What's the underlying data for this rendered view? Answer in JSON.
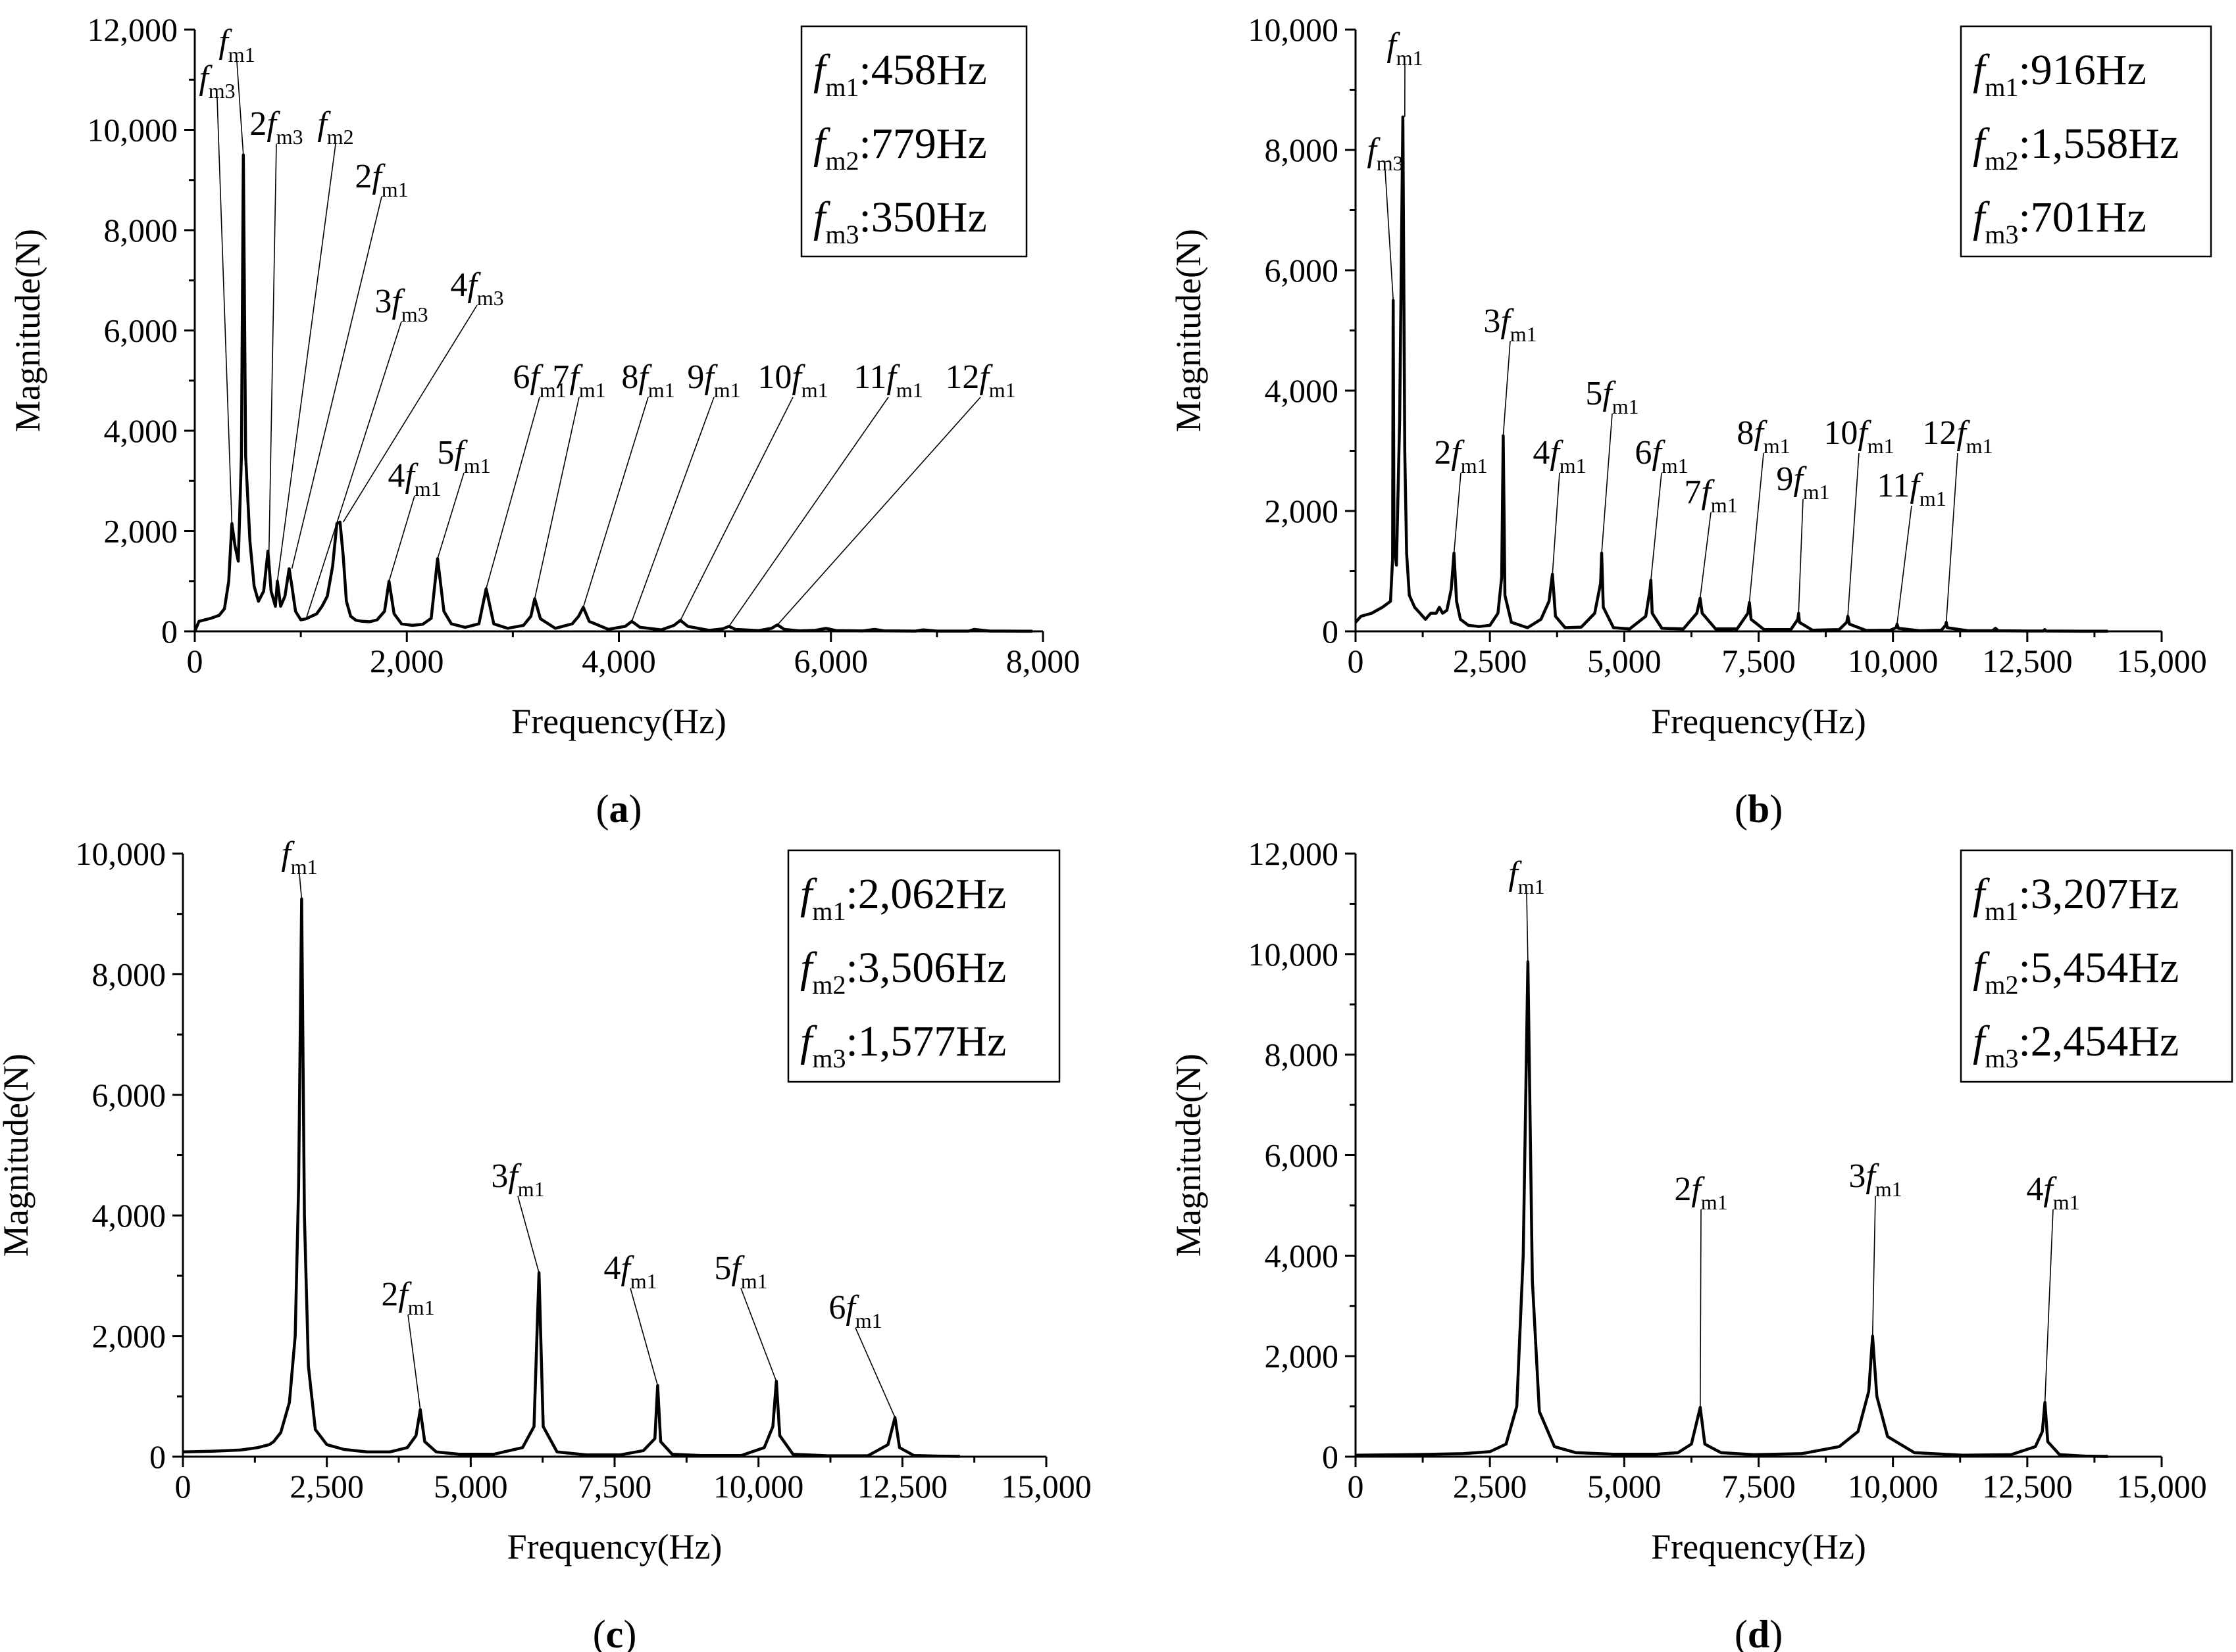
{
  "chart_data": [
    {
      "id": "a",
      "type": "line",
      "caption": "a",
      "xlabel": "Frequency(Hz)",
      "ylabel": "Magnitude(N)",
      "xlim": [
        0,
        8000
      ],
      "ylim": [
        0,
        12000
      ],
      "xticks": [
        0,
        2000,
        4000,
        6000,
        8000
      ],
      "xtick_labels": [
        "0",
        "2,000",
        "4,000",
        "6,000",
        "8,000"
      ],
      "yticks": [
        0,
        2000,
        4000,
        6000,
        8000,
        10000,
        12000
      ],
      "ytick_labels": [
        "0",
        "2,000",
        "4,000",
        "6,000",
        "8,000",
        "10,000",
        "12,000"
      ],
      "legend": [
        {
          "name": "f",
          "sub": "m1",
          "value": ":458Hz"
        },
        {
          "name": "f",
          "sub": "m2",
          "value": ":779Hz"
        },
        {
          "name": "f",
          "sub": "m3",
          "value": ":350Hz"
        }
      ],
      "series": [
        {
          "name": "Magnitude",
          "x": [
            0,
            40,
            150,
            230,
            280,
            320,
            350,
            380,
            410,
            440,
            458,
            480,
            520,
            560,
            600,
            650,
            690,
            720,
            760,
            779,
            810,
            850,
            890,
            916,
            950,
            1000,
            1050,
            1100,
            1150,
            1200,
            1250,
            1300,
            1340,
            1370,
            1400,
            1430,
            1470,
            1520,
            1580,
            1650,
            1720,
            1790,
            1832,
            1880,
            1950,
            2050,
            2150,
            2230,
            2290,
            2350,
            2420,
            2550,
            2680,
            2748,
            2820,
            2950,
            3100,
            3170,
            3206,
            3260,
            3400,
            3560,
            3620,
            3664,
            3720,
            3900,
            4060,
            4122,
            4200,
            4400,
            4520,
            4580,
            4650,
            4850,
            4980,
            5038,
            5100,
            5320,
            5440,
            5496,
            5560,
            5700,
            5850,
            5954,
            6050,
            6300,
            6412,
            6500,
            6800,
            6870,
            7000,
            7300,
            7350,
            7500,
            7800,
            7900
          ],
          "y": [
            0,
            200,
            260,
            320,
            450,
            1000,
            2150,
            1700,
            1400,
            3500,
            9500,
            3500,
            1800,
            900,
            600,
            800,
            1600,
            800,
            500,
            1000,
            500,
            700,
            1250,
            900,
            400,
            230,
            250,
            300,
            350,
            500,
            700,
            1300,
            2150,
            2180,
            1500,
            600,
            300,
            220,
            200,
            190,
            230,
            400,
            1000,
            350,
            150,
            120,
            140,
            260,
            1450,
            400,
            150,
            80,
            150,
            850,
            150,
            60,
            120,
            300,
            650,
            250,
            60,
            150,
            300,
            480,
            200,
            40,
            100,
            200,
            80,
            30,
            120,
            220,
            100,
            20,
            50,
            100,
            40,
            15,
            60,
            130,
            40,
            10,
            20,
            60,
            15,
            8,
            40,
            10,
            5,
            30,
            5,
            5,
            40,
            5,
            3,
            3
          ]
        }
      ],
      "annotations": [
        {
          "coef": "",
          "sub": "m3",
          "x": 350,
          "y": 2150
        },
        {
          "coef": "",
          "sub": "m1",
          "x": 458,
          "y": 9500
        },
        {
          "coef": "2",
          "sub": "m3",
          "x": 700,
          "y": 1600
        },
        {
          "coef": "",
          "sub": "m2",
          "x": 779,
          "y": 1000
        },
        {
          "coef": "2",
          "sub": "m1",
          "x": 916,
          "y": 1250
        },
        {
          "coef": "3",
          "sub": "m3",
          "x": 1050,
          "y": 250
        },
        {
          "coef": "4",
          "sub": "m3",
          "x": 1400,
          "y": 2180
        },
        {
          "coef": "4",
          "sub": "m1",
          "x": 1832,
          "y": 1000
        },
        {
          "coef": "5",
          "sub": "m1",
          "x": 2290,
          "y": 1450
        },
        {
          "coef": "6",
          "sub": "m1",
          "x": 2748,
          "y": 850
        },
        {
          "coef": "7",
          "sub": "m1",
          "x": 3206,
          "y": 650
        },
        {
          "coef": "8",
          "sub": "m1",
          "x": 3664,
          "y": 480
        },
        {
          "coef": "9",
          "sub": "m1",
          "x": 4122,
          "y": 200
        },
        {
          "coef": "10",
          "sub": "m1",
          "x": 4580,
          "y": 220
        },
        {
          "coef": "11",
          "sub": "m1",
          "x": 5038,
          "y": 100
        },
        {
          "coef": "12",
          "sub": "m1",
          "x": 5496,
          "y": 130
        }
      ]
    },
    {
      "id": "b",
      "type": "line",
      "caption": "b",
      "xlabel": "Frequency(Hz)",
      "ylabel": "Magnitude(N)",
      "xlim": [
        0,
        15000
      ],
      "ylim": [
        0,
        10000
      ],
      "xticks": [
        0,
        2500,
        5000,
        7500,
        10000,
        12500,
        15000
      ],
      "xtick_labels": [
        "0",
        "2,500",
        "5,000",
        "7,500",
        "10,000",
        "12,500",
        "15,000"
      ],
      "yticks": [
        0,
        2000,
        4000,
        6000,
        8000,
        10000
      ],
      "ytick_labels": [
        "0",
        "2,000",
        "4,000",
        "6,000",
        "8,000",
        "10,000"
      ],
      "legend": [
        {
          "name": "f",
          "sub": "m1",
          "value": ":916Hz"
        },
        {
          "name": "f",
          "sub": "m2",
          "value": ":1,558Hz"
        },
        {
          "name": "f",
          "sub": "m3",
          "value": ":701Hz"
        }
      ],
      "series": [
        {
          "name": "Magnitude",
          "x": [
            0,
            100,
            300,
            500,
            650,
            690,
            701,
            715,
            760,
            820,
            880,
            916,
            950,
            1000,
            1100,
            1200,
            1300,
            1400,
            1500,
            1560,
            1620,
            1700,
            1780,
            1832,
            1880,
            1950,
            2100,
            2300,
            2500,
            2650,
            2720,
            2748,
            2780,
            2900,
            3200,
            3450,
            3600,
            3664,
            3720,
            3900,
            4200,
            4450,
            4560,
            4580,
            4610,
            4800,
            5100,
            5400,
            5480,
            5496,
            5520,
            5700,
            6100,
            6350,
            6400,
            6412,
            6450,
            6700,
            7100,
            7300,
            7328,
            7360,
            7600,
            8100,
            8230,
            8244,
            8260,
            8500,
            9000,
            9140,
            9160,
            9190,
            9500,
            9950,
            10060,
            10076,
            10100,
            10500,
            10900,
            10980,
            10992,
            11010,
            11400,
            11850,
            11908,
            11960,
            12500,
            12800,
            12824,
            12850,
            13500,
            14000
          ],
          "y": [
            150,
            250,
            300,
            400,
            500,
            1200,
            5500,
            1500,
            1100,
            3500,
            8550,
            3000,
            1300,
            600,
            400,
            300,
            200,
            300,
            300,
            400,
            300,
            350,
            700,
            1300,
            500,
            200,
            100,
            80,
            100,
            300,
            900,
            3250,
            600,
            150,
            60,
            200,
            500,
            950,
            250,
            60,
            70,
            300,
            800,
            1300,
            400,
            60,
            40,
            250,
            700,
            850,
            300,
            50,
            40,
            300,
            500,
            550,
            300,
            40,
            40,
            300,
            480,
            200,
            30,
            30,
            200,
            300,
            150,
            20,
            30,
            150,
            250,
            120,
            15,
            20,
            60,
            120,
            50,
            10,
            20,
            100,
            150,
            60,
            10,
            10,
            50,
            10,
            5,
            5,
            30,
            5,
            3,
            3
          ]
        }
      ],
      "annotations": [
        {
          "coef": "",
          "sub": "m3",
          "x": 701,
          "y": 5500
        },
        {
          "coef": "",
          "sub": "m1",
          "x": 916,
          "y": 8550
        },
        {
          "coef": "2",
          "sub": "m1",
          "x": 1832,
          "y": 1300
        },
        {
          "coef": "3",
          "sub": "m1",
          "x": 2748,
          "y": 3250
        },
        {
          "coef": "4",
          "sub": "m1",
          "x": 3664,
          "y": 950
        },
        {
          "coef": "5",
          "sub": "m1",
          "x": 4580,
          "y": 1300
        },
        {
          "coef": "6",
          "sub": "m1",
          "x": 5496,
          "y": 850
        },
        {
          "coef": "7",
          "sub": "m1",
          "x": 6412,
          "y": 550
        },
        {
          "coef": "8",
          "sub": "m1",
          "x": 7328,
          "y": 480
        },
        {
          "coef": "9",
          "sub": "m1",
          "x": 8244,
          "y": 300
        },
        {
          "coef": "10",
          "sub": "m1",
          "x": 9160,
          "y": 250
        },
        {
          "coef": "11",
          "sub": "m1",
          "x": 10076,
          "y": 120
        },
        {
          "coef": "12",
          "sub": "m1",
          "x": 10992,
          "y": 150
        }
      ]
    },
    {
      "id": "c",
      "type": "line",
      "caption": "c",
      "xlabel": "Frequency(Hz)",
      "ylabel": "Magnitude(N)",
      "xlim": [
        0,
        15000
      ],
      "ylim": [
        0,
        10000
      ],
      "xticks": [
        0,
        2500,
        5000,
        7500,
        10000,
        12500,
        15000
      ],
      "xtick_labels": [
        "0",
        "2,500",
        "5,000",
        "7,500",
        "10,000",
        "12,500",
        "15,000"
      ],
      "yticks": [
        0,
        2000,
        4000,
        6000,
        8000,
        10000
      ],
      "ytick_labels": [
        "0",
        "2,000",
        "4,000",
        "6,000",
        "8,000",
        "10,000"
      ],
      "legend": [
        {
          "name": "f",
          "sub": "m1",
          "value": ":2,062Hz"
        },
        {
          "name": "f",
          "sub": "m2",
          "value": ":3,506Hz"
        },
        {
          "name": "f",
          "sub": "m3",
          "value": ":1,577Hz"
        }
      ],
      "series": [
        {
          "name": "Magnitude",
          "x": [
            0,
            500,
            1000,
            1300,
            1500,
            1577,
            1700,
            1850,
            1950,
            2010,
            2062,
            2110,
            2180,
            2300,
            2500,
            2800,
            3200,
            3600,
            3900,
            4050,
            4124,
            4200,
            4400,
            4800,
            5400,
            5900,
            6100,
            6186,
            6260,
            6500,
            7000,
            7600,
            8000,
            8200,
            8248,
            8300,
            8500,
            9000,
            9700,
            10100,
            10250,
            10310,
            10370,
            10600,
            11200,
            11900,
            12250,
            12372,
            12450,
            12700,
            13100,
            13500
          ],
          "y": [
            80,
            90,
            110,
            150,
            200,
            250,
            400,
            900,
            2000,
            4500,
            9250,
            4000,
            1500,
            450,
            200,
            120,
            80,
            80,
            150,
            350,
            780,
            250,
            80,
            40,
            40,
            150,
            500,
            3050,
            500,
            80,
            30,
            30,
            100,
            300,
            1180,
            250,
            40,
            20,
            20,
            150,
            500,
            1250,
            350,
            40,
            15,
            15,
            200,
            650,
            150,
            20,
            10,
            5
          ]
        }
      ],
      "annotations": [
        {
          "coef": "",
          "sub": "m1",
          "x": 2062,
          "y": 9250
        },
        {
          "coef": "2",
          "sub": "m1",
          "x": 4124,
          "y": 780
        },
        {
          "coef": "3",
          "sub": "m1",
          "x": 6186,
          "y": 3050
        },
        {
          "coef": "4",
          "sub": "m1",
          "x": 8248,
          "y": 1180
        },
        {
          "coef": "5",
          "sub": "m1",
          "x": 10310,
          "y": 1250
        },
        {
          "coef": "6",
          "sub": "m1",
          "x": 12372,
          "y": 650
        }
      ]
    },
    {
      "id": "d",
      "type": "line",
      "caption": "d",
      "xlabel": "Frequency(Hz)",
      "ylabel": "Magnitude(N)",
      "xlim": [
        0,
        15000
      ],
      "ylim": [
        0,
        12000
      ],
      "xticks": [
        0,
        2500,
        5000,
        7500,
        10000,
        12500,
        15000
      ],
      "xtick_labels": [
        "0",
        "2,500",
        "5,000",
        "7,500",
        "10,000",
        "12,500",
        "15,000"
      ],
      "yticks": [
        0,
        2000,
        4000,
        6000,
        8000,
        10000,
        12000
      ],
      "ytick_labels": [
        "0",
        "2,000",
        "4,000",
        "6,000",
        "8,000",
        "10,000",
        "12,000"
      ],
      "legend": [
        {
          "name": "f",
          "sub": "m1",
          "value": ":3,207Hz"
        },
        {
          "name": "f",
          "sub": "m2",
          "value": ":5,454Hz"
        },
        {
          "name": "f",
          "sub": "m3",
          "value": ":2,454Hz"
        }
      ],
      "series": [
        {
          "name": "Magnitude",
          "x": [
            0,
            1000,
            2000,
            2500,
            2800,
            3000,
            3120,
            3207,
            3290,
            3420,
            3700,
            4100,
            4800,
            5600,
            6000,
            6250,
            6414,
            6500,
            6800,
            7400,
            8300,
            9000,
            9350,
            9550,
            9621,
            9700,
            9900,
            10400,
            11300,
            12200,
            12650,
            12780,
            12828,
            12880,
            13100,
            13600,
            14000
          ],
          "y": [
            30,
            40,
            60,
            100,
            250,
            1000,
            4000,
            9850,
            3500,
            900,
            200,
            80,
            50,
            50,
            80,
            250,
            980,
            250,
            80,
            40,
            60,
            200,
            500,
            1300,
            2400,
            1200,
            400,
            80,
            30,
            40,
            200,
            500,
            1080,
            300,
            40,
            10,
            5
          ]
        }
      ],
      "annotations": [
        {
          "coef": "",
          "sub": "m1",
          "x": 3207,
          "y": 9850
        },
        {
          "coef": "2",
          "sub": "m1",
          "x": 6414,
          "y": 980
        },
        {
          "coef": "3",
          "sub": "m1",
          "x": 9621,
          "y": 2400
        },
        {
          "coef": "4",
          "sub": "m1",
          "x": 12828,
          "y": 1080
        }
      ]
    }
  ]
}
